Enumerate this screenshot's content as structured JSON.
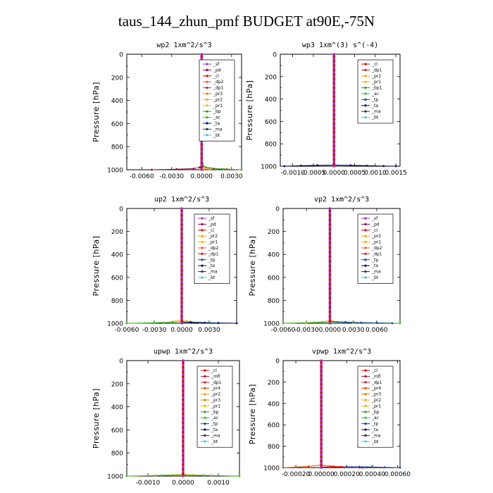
{
  "figure": {
    "title": "taus_144_zhun_pmf  BUDGET at90E,-75N"
  },
  "colors": {
    "sf": "#9b30d0",
    "pd": "#8b0a50",
    "cl": "#e00000",
    "mfl": "#b01030",
    "dp1": "#d02020",
    "dp2": "#e06030",
    "pr1": "#ffb000",
    "pr2": "#ffa000",
    "pr3": "#e08000",
    "pr4": "#e05000",
    "bp1": "#20a020",
    "bp": "#20a020",
    "ac": "#30c030",
    "tp": "#1040a0",
    "ta": "#000080",
    "ma": "#303030",
    "bt": "#40c0f0"
  },
  "chart_data": [
    {
      "type": "line",
      "title": "wp2  1xm^2/s^3",
      "ylabel": "Pressure [hPa]",
      "xlim": [
        -0.0075,
        0.004
      ],
      "ylim": [
        1000,
        0
      ],
      "y_inverted": true,
      "xticks": [
        -0.006,
        -0.003,
        0.0,
        0.003
      ],
      "xtick_labels": [
        "-0.0060",
        "-0.0030",
        "0.0000",
        "0.0030"
      ],
      "yticks": [
        0,
        200,
        400,
        600,
        800,
        1000
      ],
      "ytick_labels": [
        "0",
        "200",
        "400",
        "600",
        "800",
        "1000"
      ],
      "legend": {
        "position": "upper-right",
        "entries": [
          "_sf",
          "_pd",
          "_cl",
          "_dp2",
          "_dp1",
          "_pr3",
          "_pr2",
          "_pr1",
          "_bp",
          "_ac",
          "_ta",
          "_ma",
          "_bt"
        ],
        "keys": [
          "sf",
          "pd",
          "cl",
          "dp2",
          "dp1",
          "pr3",
          "pr2",
          "pr1",
          "bp1",
          "ac",
          "ta",
          "ma",
          "bt"
        ]
      },
      "series": [
        {
          "key": "pd",
          "x": [
            0,
            0,
            0,
            0,
            0,
            0,
            0,
            0,
            0,
            0,
            0.0001,
            -0.0002,
            -0.0008,
            -0.0025,
            -0.005
          ],
          "y": [
            0,
            100,
            200,
            300,
            400,
            500,
            600,
            700,
            800,
            900,
            960,
            980,
            990,
            995,
            1000
          ]
        },
        {
          "key": "cl",
          "x": [
            0,
            0,
            0,
            0,
            0,
            0,
            0,
            0,
            0,
            0,
            0.0001,
            0.0004,
            0.0012,
            0.0025,
            0.004
          ],
          "y": [
            0,
            100,
            200,
            300,
            400,
            500,
            600,
            700,
            800,
            900,
            960,
            980,
            990,
            995,
            1000
          ]
        },
        {
          "key": "pr2",
          "x": [
            0,
            0,
            0,
            0,
            0,
            0,
            0,
            0,
            0,
            0,
            0.0001,
            0.0003,
            0.0008
          ],
          "y": [
            0,
            150,
            300,
            450,
            600,
            750,
            850,
            900,
            940,
            960,
            975,
            985,
            995
          ]
        },
        {
          "key": "ac",
          "x": [
            0,
            0,
            0,
            0,
            0,
            0,
            0.0002,
            0.0008,
            0.0022,
            0.004
          ],
          "y": [
            0,
            200,
            400,
            600,
            800,
            900,
            970,
            985,
            993,
            1000
          ]
        },
        {
          "key": "sf",
          "x": [
            0,
            0,
            0,
            0,
            0,
            0,
            0,
            0,
            0,
            0,
            0,
            0,
            0,
            0,
            0,
            0,
            0,
            0,
            0,
            0
          ],
          "y": [
            0,
            50,
            100,
            150,
            200,
            250,
            300,
            350,
            400,
            450,
            500,
            550,
            600,
            650,
            700,
            750,
            800,
            850,
            900,
            1000
          ]
        }
      ]
    },
    {
      "type": "line",
      "title": "wp3  1xm^(3) s^(-4)",
      "ylabel": "Pressure [hPa]",
      "xlim": [
        -0.0013,
        0.0016
      ],
      "ylim": [
        1000,
        0
      ],
      "y_inverted": true,
      "xticks": [
        -0.001,
        -0.0005,
        0.0,
        0.0005,
        0.001,
        0.0015
      ],
      "xtick_labels": [
        "-0.0010",
        "-0.0005",
        "0.0000",
        "0.0005",
        "0.0010",
        "0.0015"
      ],
      "yticks": [
        0,
        200,
        400,
        600,
        800,
        1000
      ],
      "ytick_labels": [
        "0",
        "200",
        "400",
        "600",
        "800",
        "1000"
      ],
      "legend": {
        "position": "upper-right",
        "entries": [
          "_cl",
          "_dp1",
          "_pr2",
          "_pr1",
          "_bp1",
          "_ac",
          "_tp",
          "_ta",
          "_ma",
          "_bt"
        ],
        "keys": [
          "cl",
          "dp1",
          "pr2",
          "pr1",
          "bp1",
          "ac",
          "tp",
          "ta",
          "ma",
          "bt"
        ]
      },
      "series": [
        {
          "key": "ta",
          "x": [
            -0.0012,
            -0.0008,
            -0.0004,
            0,
            0.0004,
            0.0008,
            0.0012,
            0.0015
          ],
          "y": [
            1000,
            995,
            992,
            990,
            992,
            995,
            998,
            1000
          ]
        },
        {
          "key": "cl",
          "x": [
            0,
            0,
            0,
            0,
            0,
            0,
            0,
            0,
            0,
            0,
            0,
            0,
            0,
            0,
            0,
            0,
            0,
            0,
            0,
            0
          ],
          "y": [
            0,
            50,
            100,
            150,
            200,
            250,
            300,
            350,
            400,
            450,
            500,
            550,
            600,
            650,
            700,
            750,
            800,
            850,
            900,
            1000
          ]
        }
      ]
    },
    {
      "type": "line",
      "title": "up2  1xm^2/s^3",
      "ylabel": "Pressure [hPa]",
      "xlim": [
        -0.006,
        0.006
      ],
      "ylim": [
        1000,
        0
      ],
      "y_inverted": true,
      "xticks": [
        -0.006,
        -0.003,
        0.0,
        0.003
      ],
      "xtick_labels": [
        "-0.0060",
        "-0.0030",
        "0.0000",
        "0.0030"
      ],
      "yticks": [
        0,
        200,
        400,
        600,
        800,
        1000
      ],
      "ytick_labels": [
        "0",
        "200",
        "400",
        "600",
        "800",
        "1000"
      ],
      "legend": {
        "position": "upper-right",
        "entries": [
          "_sf",
          "_pd",
          "_cl",
          "_pr2",
          "_pr1",
          "_dp2",
          "_dp1",
          "_tp",
          "_ta",
          "_ma",
          "_bt"
        ],
        "keys": [
          "sf",
          "pd",
          "cl",
          "pr2",
          "pr1",
          "dp2",
          "dp1",
          "tp",
          "ta",
          "ma",
          "bt"
        ]
      },
      "series": [
        {
          "key": "pr1",
          "x": [
            -0.006,
            -0.004,
            -0.002,
            -0.001,
            0,
            0.001,
            0.002,
            0.004,
            0.006
          ],
          "y": [
            1000,
            998,
            993,
            985,
            970,
            985,
            993,
            998,
            1000
          ]
        },
        {
          "key": "ac",
          "x": [
            -0.006,
            -0.003,
            -0.001,
            0,
            0.001,
            0.003,
            0.006
          ],
          "y": [
            1000,
            996,
            990,
            985,
            990,
            996,
            1000
          ]
        },
        {
          "key": "ta",
          "x": [
            0,
            0.001,
            0.0025,
            0.004,
            0.006
          ],
          "y": [
            990,
            992,
            995,
            998,
            1000
          ]
        },
        {
          "key": "pd",
          "x": [
            0,
            0,
            0,
            0,
            0,
            0,
            0,
            0,
            0,
            0,
            0,
            0,
            0,
            0,
            0,
            0,
            0,
            0,
            0,
            0
          ],
          "y": [
            0,
            50,
            100,
            150,
            200,
            250,
            300,
            350,
            400,
            450,
            500,
            550,
            600,
            650,
            700,
            750,
            800,
            850,
            900,
            1000
          ]
        }
      ]
    },
    {
      "type": "line",
      "title": "vp2  1xm^2/s^3",
      "ylabel": "Pressure [hPa]",
      "xlim": [
        -0.006,
        0.009
      ],
      "ylim": [
        1000,
        0
      ],
      "y_inverted": true,
      "xticks": [
        -0.006,
        -0.003,
        0.0,
        0.003,
        0.006
      ],
      "xtick_labels": [
        "-0.0060",
        "-0.0030",
        "0.0000",
        "0.0030",
        "0.0060"
      ],
      "yticks": [
        0,
        200,
        400,
        600,
        800,
        1000
      ],
      "ytick_labels": [
        "0",
        "200",
        "400",
        "600",
        "800",
        "1000"
      ],
      "legend": {
        "position": "upper-right",
        "entries": [
          "_sf",
          "_pd",
          "_cl",
          "_pr2",
          "_pr1",
          "_dp2",
          "_dp1",
          "_tp",
          "_ta",
          "_ma",
          "_bt"
        ],
        "keys": [
          "sf",
          "pd",
          "cl",
          "pr2",
          "pr1",
          "dp2",
          "dp1",
          "tp",
          "ta",
          "ma",
          "bt"
        ]
      },
      "series": [
        {
          "key": "pr1",
          "x": [
            -0.006,
            -0.003,
            -0.001,
            0,
            0.001,
            0.003,
            0.006
          ],
          "y": [
            1000,
            996,
            988,
            975,
            988,
            996,
            1000
          ]
        },
        {
          "key": "ac",
          "x": [
            -0.006,
            -0.002,
            0,
            0.002,
            0.006,
            0.009
          ],
          "y": [
            1000,
            994,
            988,
            992,
            997,
            1000
          ]
        },
        {
          "key": "tp",
          "x": [
            0,
            0.002,
            0.004,
            0.006,
            0.008
          ],
          "y": [
            985,
            990,
            994,
            997,
            1000
          ]
        },
        {
          "key": "pd",
          "x": [
            0,
            0,
            0,
            0,
            0,
            0,
            0,
            0,
            0,
            0,
            0,
            0,
            0,
            0,
            0,
            0,
            0,
            0,
            0,
            0
          ],
          "y": [
            0,
            50,
            100,
            150,
            200,
            250,
            300,
            350,
            400,
            450,
            500,
            550,
            600,
            650,
            700,
            750,
            800,
            850,
            900,
            1000
          ]
        }
      ]
    },
    {
      "type": "line",
      "title": "upwp  1xm^2/s^3",
      "ylabel": "Pressure [hPa]",
      "xlim": [
        -0.0016,
        0.0016
      ],
      "ylim": [
        1000,
        0
      ],
      "y_inverted": true,
      "xticks": [
        -0.001,
        0.0,
        0.001
      ],
      "xtick_labels": [
        "-0.0010",
        "0.0000",
        "0.0010"
      ],
      "yticks": [
        0,
        200,
        400,
        600,
        800,
        1000
      ],
      "ytick_labels": [
        "0",
        "200",
        "400",
        "600",
        "800",
        "1000"
      ],
      "legend": {
        "position": "upper-right",
        "entries": [
          "_cl",
          "_mfl",
          "_dp1",
          "_pr4",
          "_pr2",
          "_pr3",
          "_pr1",
          "_bp",
          "_ac",
          "_tp",
          "_ta",
          "_ma",
          "_bt"
        ],
        "keys": [
          "cl",
          "mfl",
          "dp1",
          "pr4",
          "pr2",
          "pr3",
          "pr1",
          "bp",
          "ac",
          "tp",
          "ta",
          "ma",
          "bt"
        ]
      },
      "series": [
        {
          "key": "pr2",
          "x": [
            -0.0016,
            -0.0008,
            -0.0003,
            0,
            0.0003,
            0.0008,
            0.0016
          ],
          "y": [
            1000,
            995,
            990,
            985,
            990,
            995,
            1000
          ]
        },
        {
          "key": "ac",
          "x": [
            -0.0016,
            -0.0006,
            0,
            0.0006,
            0.0016
          ],
          "y": [
            1000,
            994,
            990,
            994,
            1000
          ]
        },
        {
          "key": "sf",
          "x": [
            0,
            0,
            0,
            0,
            0,
            0,
            0,
            0,
            0,
            0,
            0,
            0,
            0,
            0,
            0,
            0,
            0,
            0,
            0,
            0
          ],
          "y": [
            0,
            50,
            100,
            150,
            200,
            250,
            300,
            350,
            400,
            450,
            500,
            550,
            600,
            650,
            700,
            750,
            800,
            850,
            900,
            1000
          ]
        }
      ]
    },
    {
      "type": "line",
      "title": "vpwp  1xm^2/s^3",
      "ylabel": "Pressure [hPa]",
      "xlim": [
        -0.0003,
        0.00062
      ],
      "ylim": [
        1000,
        0
      ],
      "y_inverted": true,
      "xticks": [
        -0.0002,
        0.0,
        0.0002,
        0.0004,
        0.0006
      ],
      "xtick_labels": [
        "-0.00020",
        "0.00000",
        "0.00020",
        "0.00040",
        "0.00060"
      ],
      "yticks": [
        0,
        200,
        400,
        600,
        800,
        1000
      ],
      "ytick_labels": [
        "0",
        "200",
        "400",
        "600",
        "800",
        "1000"
      ],
      "legend": {
        "position": "upper-right",
        "entries": [
          "_cl",
          "_mfl",
          "_dp1",
          "_pr4",
          "_pr3",
          "_pr2",
          "_pr1",
          "_bp",
          "_ac",
          "_tp",
          "_ta",
          "_ma",
          "_bt"
        ],
        "keys": [
          "cl",
          "mfl",
          "dp1",
          "pr4",
          "pr3",
          "pr2",
          "pr1",
          "bp",
          "ac",
          "tp",
          "ta",
          "ma",
          "bt"
        ]
      },
      "series": [
        {
          "key": "pr4",
          "x": [
            -0.0003,
            -0.0002,
            -0.0001,
            0,
            0.0001,
            0.0002,
            0.0003
          ],
          "y": [
            1000,
            995,
            988,
            975,
            988,
            995,
            1000
          ]
        },
        {
          "key": "cl",
          "x": [
            0,
            8e-05,
            0.00016,
            0.00024,
            0.00032
          ],
          "y": [
            995,
            992,
            993,
            996,
            1000
          ]
        },
        {
          "key": "tp",
          "x": [
            0.0002,
            0.0003,
            0.0004,
            0.0005,
            0.00062
          ],
          "y": [
            993,
            992,
            994,
            997,
            1000
          ]
        },
        {
          "key": "sf",
          "x": [
            0,
            0,
            0,
            0,
            0,
            0,
            0,
            0,
            0,
            0,
            0,
            0,
            0,
            0,
            0,
            0,
            0,
            0,
            0,
            0
          ],
          "y": [
            0,
            50,
            100,
            150,
            200,
            250,
            300,
            350,
            400,
            450,
            500,
            550,
            600,
            650,
            700,
            750,
            800,
            850,
            900,
            1000
          ]
        }
      ]
    }
  ]
}
